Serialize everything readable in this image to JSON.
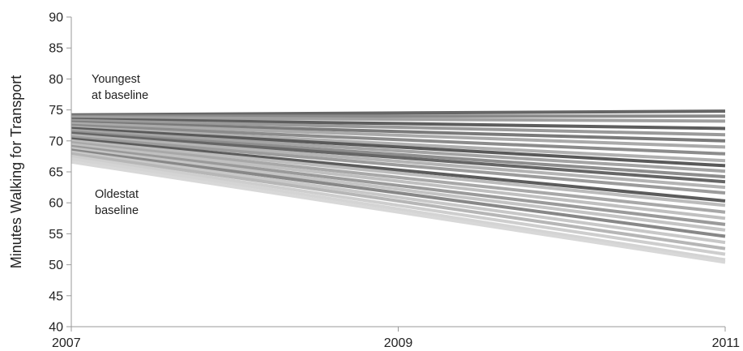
{
  "chart_data": {
    "type": "line",
    "title": "",
    "xlabel": "",
    "ylabel": "Minutes Walking for Transport",
    "x": [
      2007,
      2009,
      2011
    ],
    "xlim": [
      2007,
      2011
    ],
    "ylim": [
      40,
      90
    ],
    "x_ticks": [
      "2007",
      "2009",
      "2011"
    ],
    "y_ticks": [
      "40",
      "45",
      "50",
      "55",
      "60",
      "65",
      "70",
      "75",
      "80",
      "85",
      "90"
    ],
    "grid": false,
    "legend": "none",
    "annotations": [
      {
        "id": "youngest",
        "lines": [
          "Youngest",
          "at baseline"
        ]
      },
      {
        "id": "oldest",
        "lines": [
          "Oldestat",
          "baseline"
        ]
      }
    ],
    "series": [
      {
        "values": [
          74.2,
          74.5,
          74.8
        ],
        "color": "#666666"
      },
      {
        "values": [
          74.0,
          74.0,
          74.0
        ],
        "color": "#8a8a8a"
      },
      {
        "values": [
          73.8,
          73.5,
          73.2
        ],
        "color": "#a0a0a0"
      },
      {
        "values": [
          73.5,
          72.8,
          72.0
        ],
        "color": "#5e5e5e"
      },
      {
        "values": [
          73.3,
          72.2,
          71.0
        ],
        "color": "#9a9a9a"
      },
      {
        "values": [
          73.0,
          71.5,
          70.0
        ],
        "color": "#7a7a7a"
      },
      {
        "values": [
          72.8,
          70.9,
          69.0
        ],
        "color": "#aaaaaa"
      },
      {
        "values": [
          72.5,
          70.2,
          67.9
        ],
        "color": "#8c8c8c"
      },
      {
        "values": [
          72.2,
          69.5,
          66.8
        ],
        "color": "#b0b0b0"
      },
      {
        "values": [
          72.0,
          69.0,
          66.0
        ],
        "color": "#5a5a5a"
      },
      {
        "values": [
          71.7,
          68.4,
          65.1
        ],
        "color": "#a4a4a4"
      },
      {
        "values": [
          71.4,
          67.8,
          64.2
        ],
        "color": "#8e8e8e"
      },
      {
        "values": [
          71.2,
          67.3,
          63.4
        ],
        "color": "#666666"
      },
      {
        "values": [
          70.9,
          66.7,
          62.5
        ],
        "color": "#b4b4b4"
      },
      {
        "values": [
          70.6,
          66.1,
          61.6
        ],
        "color": "#9c9c9c"
      },
      {
        "values": [
          70.3,
          65.3,
          60.3
        ],
        "color": "#5c5c5c"
      },
      {
        "values": [
          70.0,
          64.8,
          59.6
        ],
        "color": "#bcbcbc"
      },
      {
        "values": [
          69.7,
          64.1,
          58.5
        ],
        "color": "#a8a8a8"
      },
      {
        "values": [
          69.4,
          63.5,
          57.5
        ],
        "color": "#c0c0c0"
      },
      {
        "values": [
          69.1,
          62.8,
          56.5
        ],
        "color": "#9a9a9a"
      },
      {
        "values": [
          68.8,
          62.2,
          55.6
        ],
        "color": "#c4c4c4"
      },
      {
        "values": [
          68.5,
          61.6,
          54.6
        ],
        "color": "#888888"
      },
      {
        "values": [
          68.2,
          60.9,
          53.6
        ],
        "color": "#c8c8c8"
      },
      {
        "values": [
          67.9,
          60.3,
          52.6
        ],
        "color": "#b6b6b6"
      },
      {
        "values": [
          67.5,
          59.6,
          51.7
        ],
        "color": "#cecece"
      },
      {
        "values": [
          67.1,
          59.0,
          50.8
        ],
        "color": "#d4d4d4"
      },
      {
        "values": [
          66.6,
          58.5,
          50.4
        ],
        "color": "#d8d8d8"
      }
    ]
  }
}
